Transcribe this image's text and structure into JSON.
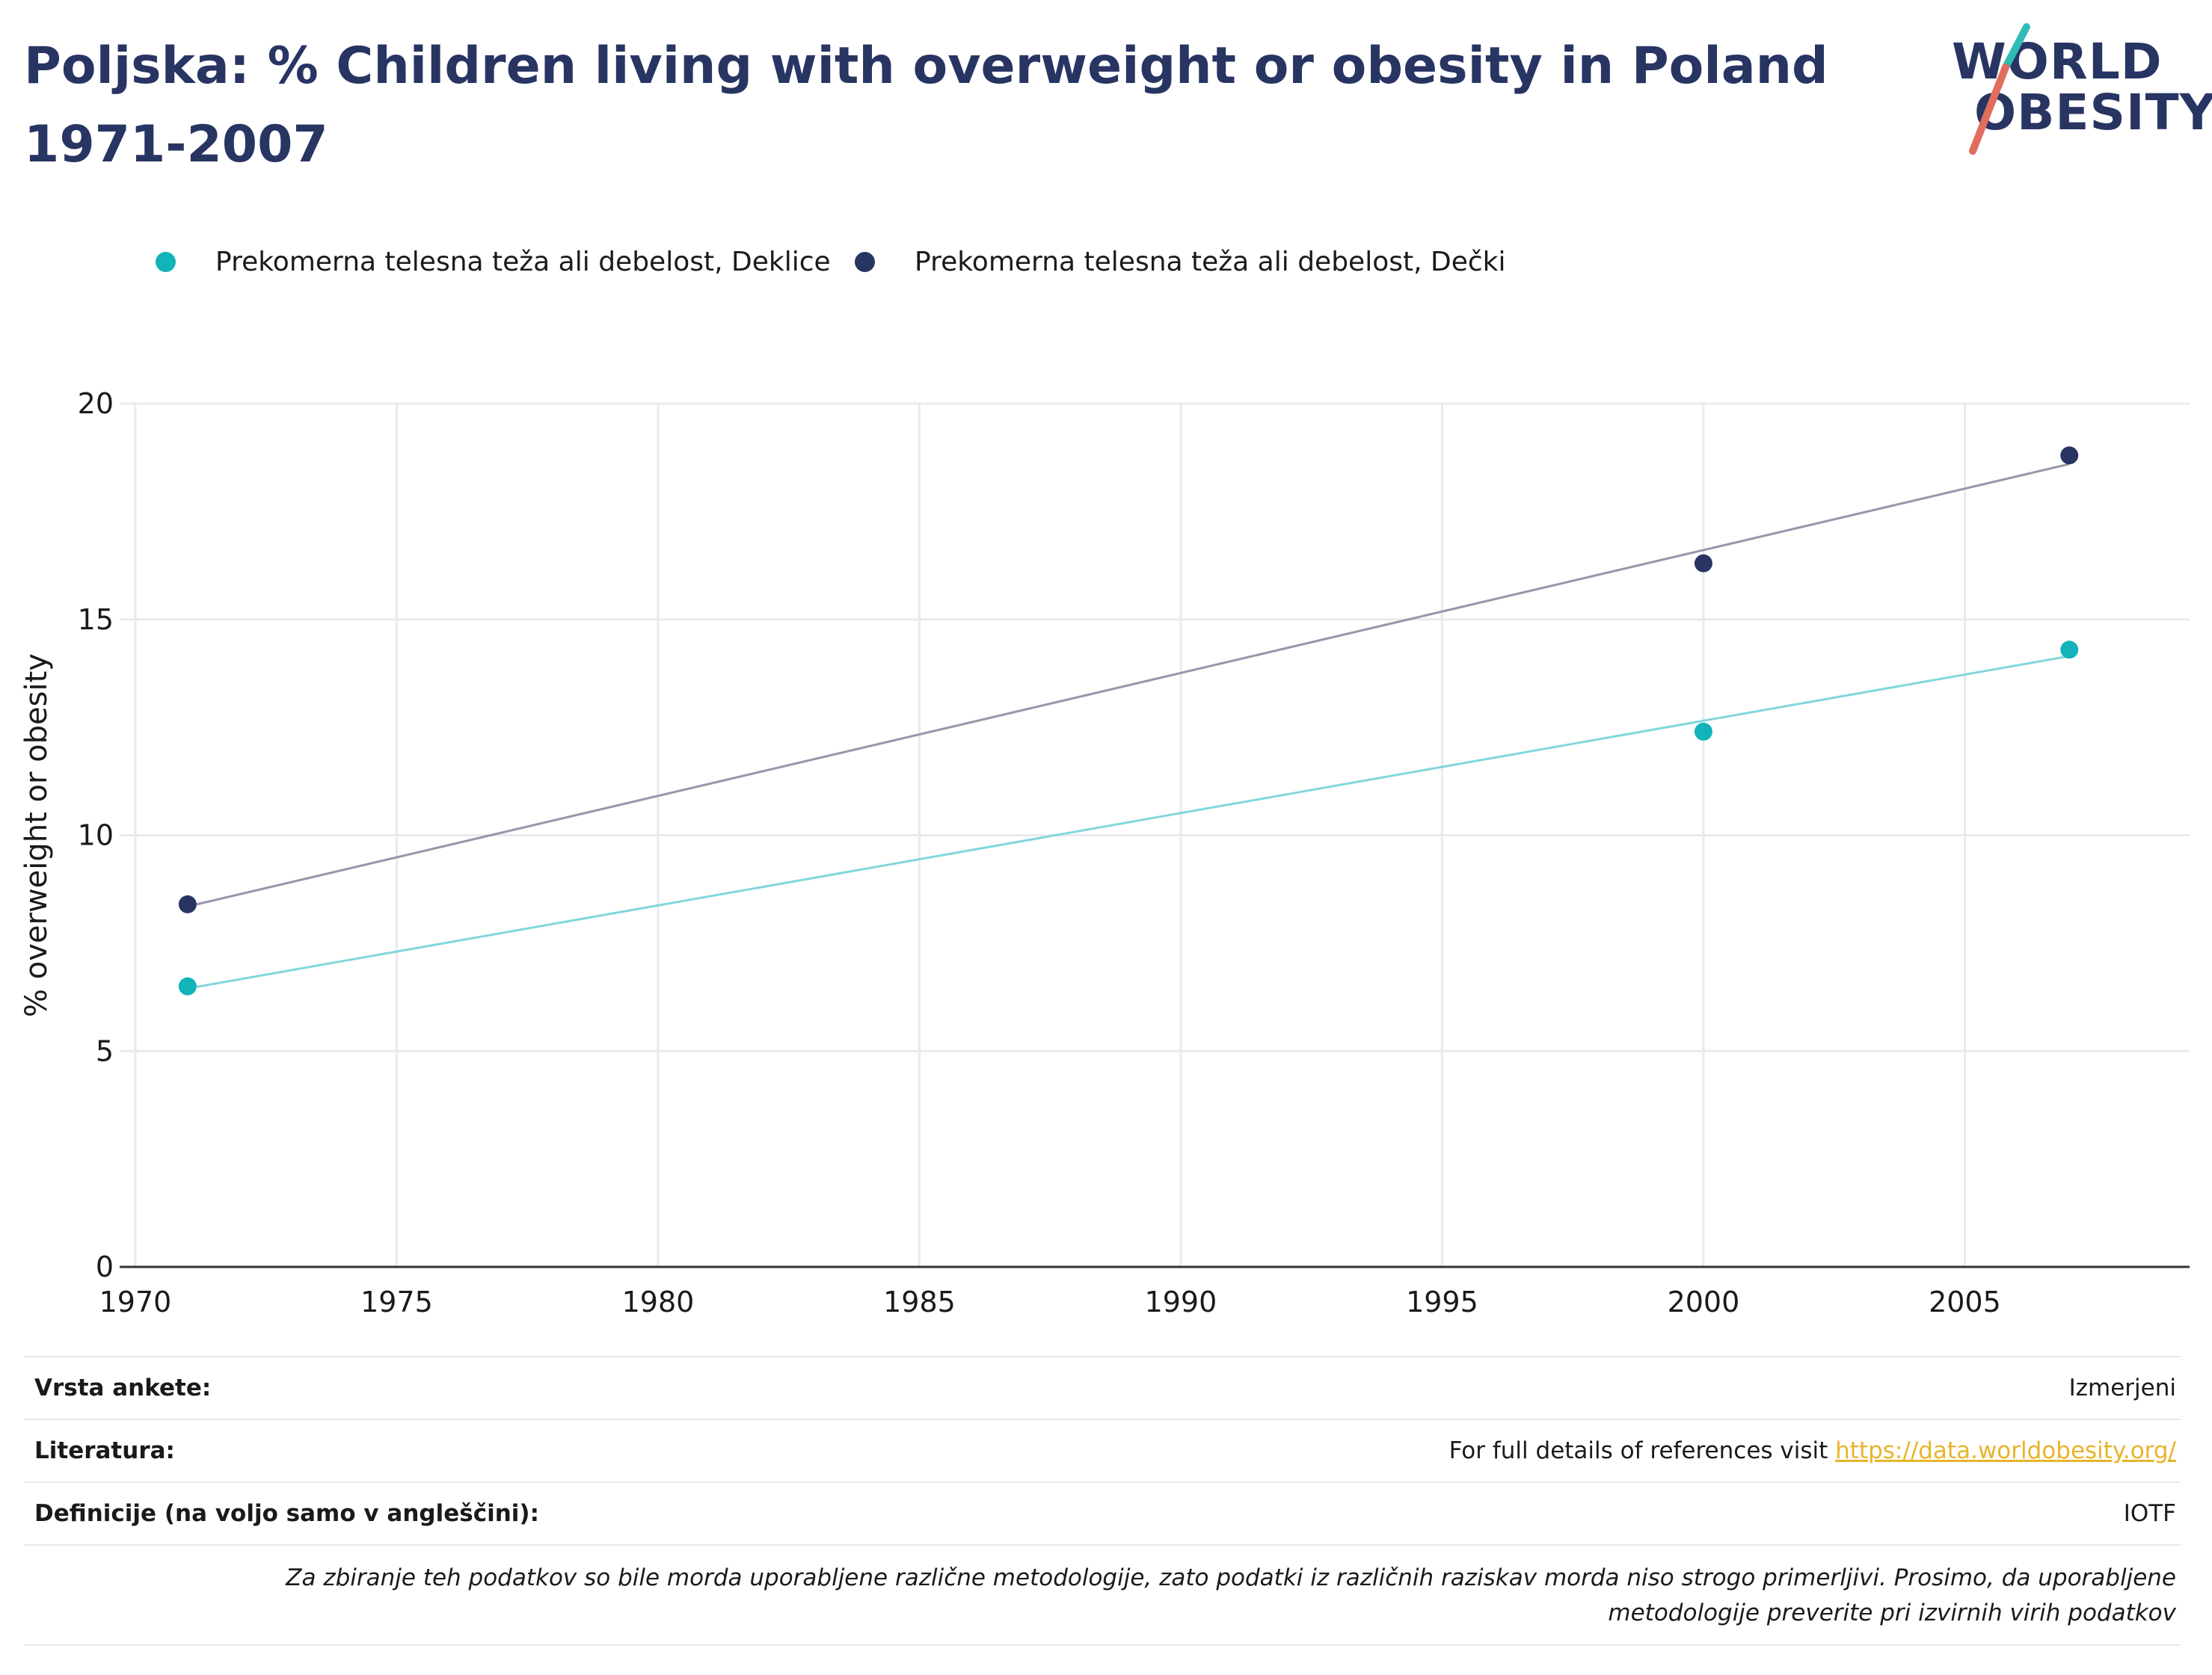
{
  "title": "Poljska: % Children living with overweight or obesity in Poland 1971-2007",
  "logo": {
    "line1": "WORLD",
    "line2": "OBESITY"
  },
  "colors": {
    "girls": "#12b3b9",
    "boys": "#283563",
    "girls_trend": "#82d7da",
    "boys_trend": "#9896ab",
    "title": "#283563",
    "link": "#e8b42a",
    "logo_slash_top": "#30bbb6",
    "logo_slash_bottom": "#e06d5d"
  },
  "chart_data": {
    "type": "scatter",
    "title": "Poljska: % Children living with overweight or obesity in Poland 1971-2007",
    "xlabel": "",
    "ylabel": "% overweight or obesity",
    "xlim": [
      1969.7,
      2009.3
    ],
    "ylim": [
      0,
      20
    ],
    "x_ticks": [
      1970,
      1975,
      1980,
      1985,
      1990,
      1995,
      2000,
      2005
    ],
    "y_ticks": [
      0,
      5,
      10,
      15,
      20
    ],
    "grid": true,
    "legend_position": "top-left",
    "series": [
      {
        "name": "Prekomerna telesna teža ali debelost, Deklice",
        "color_key": "girls",
        "trend_color_key": "girls_trend",
        "x": [
          1971,
          2000,
          2007
        ],
        "y": [
          6.5,
          12.4,
          14.3
        ],
        "trendline": {
          "x": [
            1971,
            2007
          ],
          "y": [
            6.45,
            14.15
          ]
        }
      },
      {
        "name": "Prekomerna telesna teža ali debelost, Dečki",
        "color_key": "boys",
        "trend_color_key": "boys_trend",
        "x": [
          1971,
          2000,
          2007
        ],
        "y": [
          8.4,
          16.3,
          18.8
        ],
        "trendline": {
          "x": [
            1971,
            2007
          ],
          "y": [
            8.35,
            18.6
          ]
        }
      }
    ]
  },
  "footer": {
    "survey_type_label": "Vrsta ankete:",
    "survey_type_value": "Izmerjeni",
    "literature_label": "Literatura:",
    "literature_text": "For full details of references visit ",
    "literature_link": "https://data.worldobesity.org/",
    "definitions_label": "Definicije (na voljo samo v angleščini):",
    "definitions_value": "IOTF",
    "note": "Za zbiranje teh podatkov so bile morda uporabljene različne metodologije, zato podatki iz različnih raziskav morda niso strogo primerljivi. Prosimo, da uporabljene metodologije preverite pri izvirnih virih podatkov"
  }
}
